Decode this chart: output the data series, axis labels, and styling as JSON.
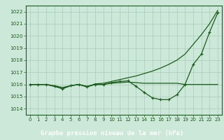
{
  "x": [
    0,
    1,
    2,
    3,
    4,
    5,
    6,
    7,
    8,
    9,
    10,
    11,
    12,
    13,
    14,
    15,
    16,
    17,
    18,
    19,
    20,
    21,
    22,
    23
  ],
  "line_flat": [
    1016.0,
    1016.0,
    1016.0,
    1015.9,
    1015.75,
    1015.9,
    1016.0,
    1015.85,
    1016.0,
    1016.0,
    1016.1,
    1016.15,
    1016.2,
    1016.15,
    1016.1,
    1016.1,
    1016.1,
    1016.1,
    1016.1,
    1016.0,
    1016.0,
    1016.0,
    1016.0,
    1016.0
  ],
  "line_marked": [
    1016.0,
    1016.0,
    1016.0,
    1015.85,
    1015.65,
    1015.9,
    1016.0,
    1015.8,
    1016.0,
    1016.0,
    1016.15,
    1016.25,
    1016.3,
    1015.85,
    1015.35,
    1014.9,
    1014.75,
    1014.75,
    1015.15,
    1016.0,
    1017.65,
    1018.5,
    1020.3,
    1021.9
  ],
  "line_rising": [
    1016.0,
    1016.0,
    1016.0,
    1015.85,
    1015.65,
    1015.9,
    1016.0,
    1015.8,
    1016.05,
    1016.1,
    1016.25,
    1016.4,
    1016.55,
    1016.7,
    1016.9,
    1017.1,
    1017.35,
    1017.65,
    1018.0,
    1018.5,
    1019.3,
    1020.1,
    1021.0,
    1022.1
  ],
  "ylim": [
    1013.5,
    1022.5
  ],
  "xlim": [
    -0.5,
    23.5
  ],
  "yticks": [
    1014,
    1015,
    1016,
    1017,
    1018,
    1019,
    1020,
    1021,
    1022
  ],
  "xticks": [
    0,
    1,
    2,
    3,
    4,
    5,
    6,
    7,
    8,
    9,
    10,
    11,
    12,
    13,
    14,
    15,
    16,
    17,
    18,
    19,
    20,
    21,
    22,
    23
  ],
  "bg_color": "#cce8d8",
  "grid_color": "#aaccbb",
  "line_color": "#1a5c1a",
  "xlabel": "Graphe pression niveau de la mer (hPa)",
  "xlabel_bg": "#2a7a30",
  "xlabel_color": "#ffffff"
}
